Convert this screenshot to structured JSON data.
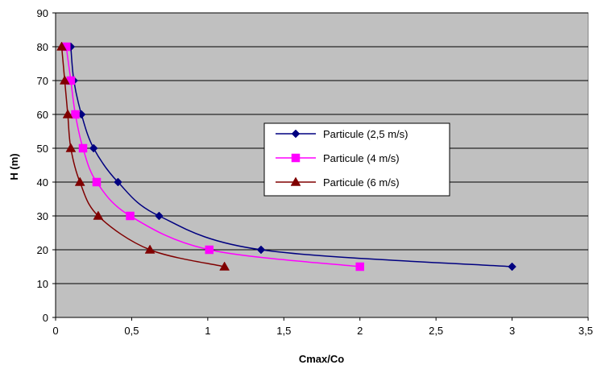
{
  "chart_data": {
    "type": "line",
    "title": "",
    "xlabel": "Cmax/Co",
    "ylabel": "H (m)",
    "xlim": [
      0,
      3.5
    ],
    "ylim": [
      0,
      90
    ],
    "x_ticks": [
      0,
      0.5,
      1,
      1.5,
      2,
      2.5,
      3,
      3.5
    ],
    "x_tick_labels": [
      "0",
      "0,5",
      "1",
      "1,5",
      "2",
      "2,5",
      "3",
      "3,5"
    ],
    "y_ticks": [
      0,
      10,
      20,
      30,
      40,
      50,
      60,
      70,
      80,
      90
    ],
    "y_tick_labels": [
      "0",
      "10",
      "20",
      "30",
      "40",
      "50",
      "60",
      "70",
      "80",
      "90"
    ],
    "grid": "horizontal",
    "plot_background": "#c0c0c0",
    "legend_position": "center-right",
    "series": [
      {
        "name": "Particule (2,5 m/s)",
        "color": "#000080",
        "marker": "diamond",
        "points": [
          {
            "x": 0.1,
            "y": 80
          },
          {
            "x": 0.12,
            "y": 70
          },
          {
            "x": 0.17,
            "y": 60
          },
          {
            "x": 0.25,
            "y": 50
          },
          {
            "x": 0.41,
            "y": 40
          },
          {
            "x": 0.68,
            "y": 30
          },
          {
            "x": 1.35,
            "y": 20
          },
          {
            "x": 3.0,
            "y": 15
          }
        ]
      },
      {
        "name": "Particule (4 m/s)",
        "color": "#ff00ff",
        "marker": "square",
        "points": [
          {
            "x": 0.07,
            "y": 80
          },
          {
            "x": 0.1,
            "y": 70
          },
          {
            "x": 0.13,
            "y": 60
          },
          {
            "x": 0.18,
            "y": 50
          },
          {
            "x": 0.27,
            "y": 40
          },
          {
            "x": 0.49,
            "y": 30
          },
          {
            "x": 1.01,
            "y": 20
          },
          {
            "x": 2.0,
            "y": 15
          }
        ]
      },
      {
        "name": "Particule (6 m/s)",
        "color": "#800000",
        "marker": "triangle",
        "points": [
          {
            "x": 0.04,
            "y": 80
          },
          {
            "x": 0.06,
            "y": 70
          },
          {
            "x": 0.08,
            "y": 60
          },
          {
            "x": 0.1,
            "y": 50
          },
          {
            "x": 0.16,
            "y": 40
          },
          {
            "x": 0.28,
            "y": 30
          },
          {
            "x": 0.62,
            "y": 20
          },
          {
            "x": 1.11,
            "y": 15
          }
        ]
      }
    ]
  }
}
